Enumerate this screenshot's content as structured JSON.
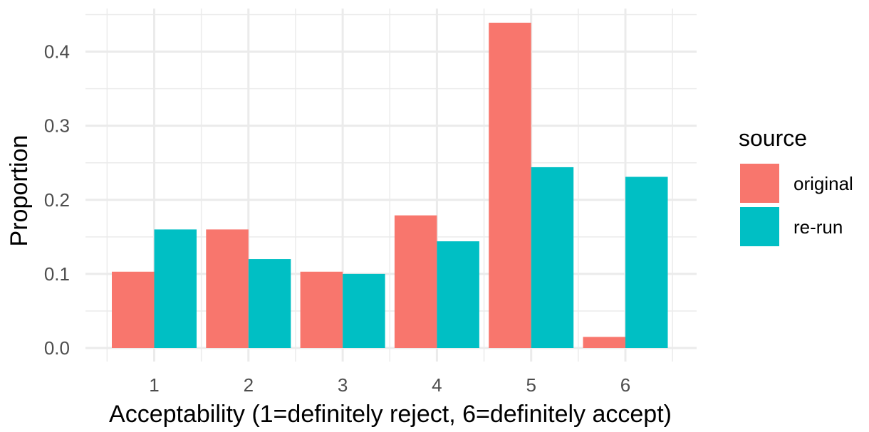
{
  "chart_data": {
    "type": "bar",
    "title": "",
    "xlabel": "Acceptability (1=definitely reject, 6=definitely accept)",
    "ylabel": "Proportion",
    "categories": [
      "1",
      "2",
      "3",
      "4",
      "5",
      "6"
    ],
    "ylim": [
      0,
      0.45
    ],
    "yticks": [
      "0.0",
      "0.1",
      "0.2",
      "0.3",
      "0.4"
    ],
    "grid": true,
    "legend": {
      "title": "source",
      "position": "right"
    },
    "series": [
      {
        "name": "original",
        "color": "#F8766D",
        "values": [
          0.103,
          0.16,
          0.103,
          0.179,
          0.439,
          0.015
        ]
      },
      {
        "name": "re-run",
        "color": "#00BFC4",
        "values": [
          0.16,
          0.12,
          0.1,
          0.144,
          0.244,
          0.231
        ]
      }
    ]
  }
}
